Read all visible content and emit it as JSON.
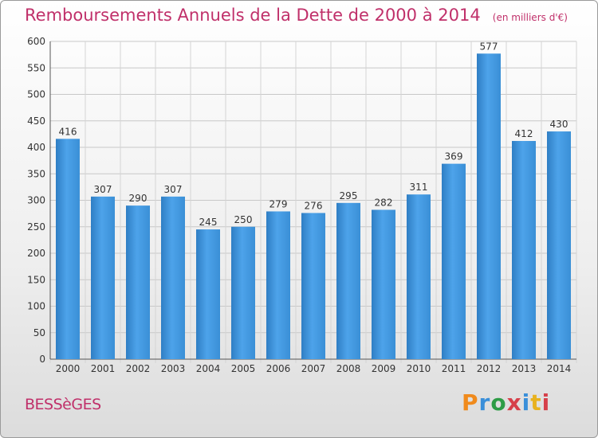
{
  "chart_data": {
    "type": "bar",
    "title": "Remboursements Annuels de la Dette de 2000 à 2014",
    "subtitle": "(en milliers d'€)",
    "categories": [
      "2000",
      "2001",
      "2002",
      "2003",
      "2004",
      "2005",
      "2006",
      "2007",
      "2008",
      "2009",
      "2010",
      "2011",
      "2012",
      "2013",
      "2014"
    ],
    "values": [
      416,
      307,
      290,
      307,
      245,
      250,
      279,
      276,
      295,
      282,
      311,
      369,
      577,
      412,
      430
    ],
    "ylim": [
      0,
      600
    ],
    "yticks": [
      0,
      50,
      100,
      150,
      200,
      250,
      300,
      350,
      400,
      450,
      500,
      550,
      600
    ],
    "xlabel": "",
    "ylabel": "",
    "grid": true,
    "bar_color": "#3d8fd6"
  },
  "footer": {
    "commune": "BESSèGES",
    "brand_letters": [
      "P",
      "r",
      "o",
      "x",
      "i",
      "t",
      "i"
    ],
    "brand_colors": [
      "#f08a1c",
      "#3a8fd9",
      "#2e9c46",
      "#d6404a",
      "#3a8fd9",
      "#e8b21f",
      "#d6404a"
    ]
  }
}
